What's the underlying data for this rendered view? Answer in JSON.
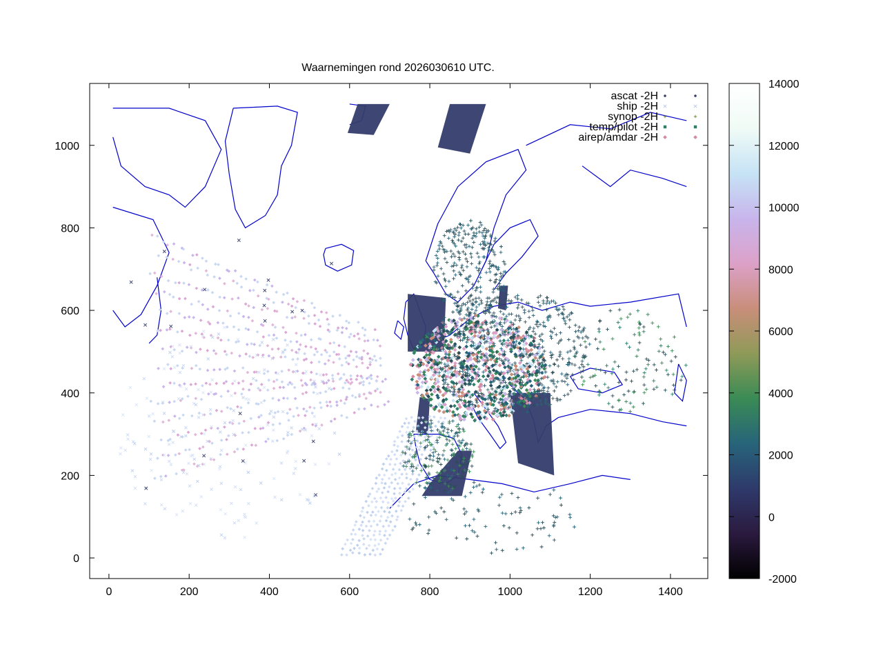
{
  "chart_data": {
    "type": "scatter",
    "title": "Waarnemingen rond 2026030610 UTC.",
    "xlabel": "",
    "ylabel": "",
    "xlim": [
      -48,
      1493
    ],
    "ylim": [
      -50,
      1150
    ],
    "x_ticks": [
      0,
      200,
      400,
      600,
      800,
      1000,
      1200,
      1400
    ],
    "y_ticks": [
      0,
      200,
      400,
      600,
      800,
      1000
    ],
    "grid": false,
    "legend_position": "top-right",
    "series": [
      {
        "name": "ascat -2H",
        "marker": "dot"
      },
      {
        "name": "ship -2H",
        "marker": "x"
      },
      {
        "name": "synop -2H",
        "marker": "plus"
      },
      {
        "name": "temp/pilot -2H",
        "marker": "square"
      },
      {
        "name": "airep/amdar -2H",
        "marker": "diamond"
      }
    ],
    "colorbar": {
      "range": [
        -2000,
        14000
      ],
      "ticks": [
        -2000,
        0,
        2000,
        4000,
        6000,
        8000,
        10000,
        12000,
        14000
      ],
      "colormap": [
        "#000000",
        "#2b1a3f",
        "#2e3a6b",
        "#27647a",
        "#3a8b55",
        "#8f9a58",
        "#c98e7a",
        "#dca1c8",
        "#c8b5ec",
        "#c6e3f5",
        "#f0fbf6",
        "#ffffff"
      ]
    },
    "colors": {
      "coastline": "#0000cc",
      "ascat": "#343c6b",
      "synop": "#2a4e57",
      "ship": "#c9d8f2",
      "airep_light": "#c8d6f0",
      "airep_pink": "#dba6d6"
    }
  }
}
